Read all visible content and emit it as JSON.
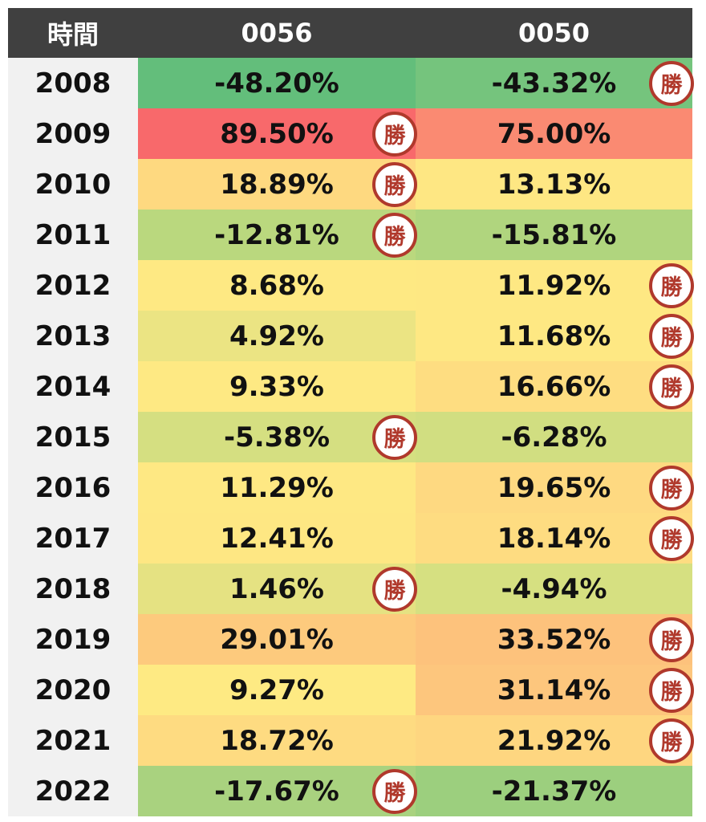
{
  "header": {
    "col_time": "時間",
    "col_a": "0056",
    "col_b": "0050"
  },
  "win_label": "勝",
  "colors": {
    "header_bg": "#404040",
    "year_bg": "#f1f1f1",
    "badge": "#b0392c"
  },
  "rows": [
    {
      "year": "2008",
      "a": "-48.20%",
      "b": "-43.32%",
      "winner": "0050",
      "a_color": "#63be7b",
      "b_color": "#75c47d"
    },
    {
      "year": "2009",
      "a": "89.50%",
      "b": "75.00%",
      "winner": "0056",
      "a_color": "#f8696b",
      "b_color": "#fa8a72"
    },
    {
      "year": "2010",
      "a": "18.89%",
      "b": "13.13%",
      "winner": "0056",
      "a_color": "#fed980",
      "b_color": "#fee783"
    },
    {
      "year": "2011",
      "a": "-12.81%",
      "b": "-15.81%",
      "winner": "0056",
      "a_color": "#bad87e",
      "b_color": "#b0d57e"
    },
    {
      "year": "2012",
      "a": "8.68%",
      "b": "11.92%",
      "winner": "0050",
      "a_color": "#fee983",
      "b_color": "#fee883"
    },
    {
      "year": "2013",
      "a": "4.92%",
      "b": "11.68%",
      "winner": "0050",
      "a_color": "#ebe483",
      "b_color": "#fee883"
    },
    {
      "year": "2014",
      "a": "9.33%",
      "b": "16.66%",
      "winner": "0050",
      "a_color": "#fee983",
      "b_color": "#fedd81"
    },
    {
      "year": "2015",
      "a": "-5.38%",
      "b": "-6.28%",
      "winner": "0056",
      "a_color": "#d5df81",
      "b_color": "#d1de81"
    },
    {
      "year": "2016",
      "a": "11.29%",
      "b": "19.65%",
      "winner": "0050",
      "a_color": "#fee883",
      "b_color": "#fed981"
    },
    {
      "year": "2017",
      "a": "12.41%",
      "b": "18.14%",
      "winner": "0050",
      "a_color": "#fee783",
      "b_color": "#fedc81"
    },
    {
      "year": "2018",
      "a": "1.46%",
      "b": "-4.94%",
      "winner": "0056",
      "a_color": "#e5e282",
      "b_color": "#d6e081"
    },
    {
      "year": "2019",
      "a": "29.01%",
      "b": "33.52%",
      "winner": "0050",
      "a_color": "#fdca7d",
      "b_color": "#fdc27c"
    },
    {
      "year": "2020",
      "a": "9.27%",
      "b": "31.14%",
      "winner": "0050",
      "a_color": "#feea83",
      "b_color": "#fdc67d"
    },
    {
      "year": "2021",
      "a": "18.72%",
      "b": "21.92%",
      "winner": "0050",
      "a_color": "#fedb81",
      "b_color": "#fed680"
    },
    {
      "year": "2022",
      "a": "-17.67%",
      "b": "-21.37%",
      "winner": "0056",
      "a_color": "#a9d27f",
      "b_color": "#9ccf7e"
    }
  ]
}
